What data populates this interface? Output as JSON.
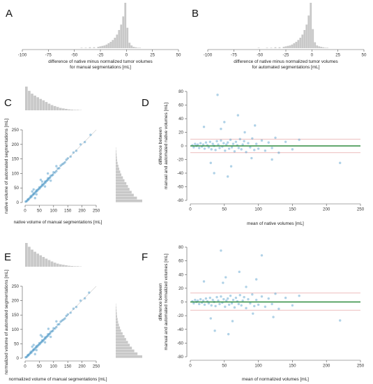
{
  "colors": {
    "hist_bar": "#c8c8c8",
    "points": "#3a8fc4",
    "bias_line": "#2e8b3e",
    "loa_line": "#e6a9a9",
    "identity": "#d5d5d5"
  },
  "panels": {
    "A": {
      "letter": "A",
      "xlabel_line1": "difference of native minus normalized tumor volumes",
      "xlabel_line2": "for manual segmentations [mL]"
    },
    "B": {
      "letter": "B",
      "xlabel_line1": "difference of native minus normalized tumor volumes",
      "xlabel_line2": "for automated segmentations [mL]"
    },
    "C": {
      "letter": "C",
      "xlabel": "native volume of manual segmentations [mL]",
      "ylabel": "native volume of automated segmentations [mL]"
    },
    "D": {
      "letter": "D",
      "xlabel": "mean of native volumes [mL]",
      "ylabel_line1": "difference between",
      "ylabel_line2": "manual and automated native volumes [mL]"
    },
    "E": {
      "letter": "E",
      "xlabel": "normalized volume of manual segmentations [mL]",
      "ylabel": "normalized volume of automated segmentations [mL]"
    },
    "F": {
      "letter": "F",
      "xlabel": "mean of normalized volumes [mL]",
      "ylabel_line1": "difference between",
      "ylabel_line2": "manual and automated normalized volumes [mL]"
    }
  },
  "chart_data": [
    {
      "panel": "A",
      "type": "bar",
      "subtype": "histogram",
      "xlim": [
        -100,
        50
      ],
      "xticks": [
        "-100",
        "-75",
        "-50",
        "-25",
        "0",
        "25",
        "50"
      ],
      "bin_width": 2,
      "bin_centers": [
        -43,
        -39,
        -35,
        -31,
        -27,
        -25,
        -23,
        -21,
        -19,
        -17,
        -15,
        -13,
        -11,
        -9,
        -7,
        -5,
        -3,
        -1,
        1,
        3,
        5,
        7,
        9,
        11,
        13
      ],
      "counts": [
        0.01,
        0.01,
        0.02,
        0.02,
        0.03,
        0.04,
        0.05,
        0.06,
        0.08,
        0.11,
        0.14,
        0.18,
        0.23,
        0.3,
        0.4,
        0.52,
        0.7,
        1.0,
        0.45,
        0.12,
        0.06,
        0.03,
        0.02,
        0.01,
        0.01
      ]
    },
    {
      "panel": "B",
      "type": "bar",
      "subtype": "histogram",
      "xlim": [
        -100,
        50
      ],
      "xticks": [
        "-100",
        "-75",
        "-50",
        "-25",
        "0",
        "25",
        "50"
      ],
      "bin_width": 2,
      "bin_centers": [
        -51,
        -43,
        -39,
        -35,
        -31,
        -27,
        -25,
        -23,
        -21,
        -19,
        -17,
        -15,
        -13,
        -11,
        -9,
        -7,
        -5,
        -3,
        -1,
        1,
        3,
        5,
        7,
        9,
        11,
        13,
        15
      ],
      "counts": [
        0.01,
        0.01,
        0.01,
        0.02,
        0.02,
        0.03,
        0.04,
        0.05,
        0.06,
        0.08,
        0.11,
        0.14,
        0.18,
        0.23,
        0.3,
        0.4,
        0.52,
        0.72,
        1.0,
        0.42,
        0.13,
        0.06,
        0.04,
        0.03,
        0.02,
        0.01,
        0.01
      ]
    },
    {
      "panel": "C",
      "type": "scatter",
      "xlim": [
        0,
        250
      ],
      "ylim": [
        0,
        250
      ],
      "xticks": [
        "0",
        "50",
        "100",
        "150",
        "200",
        "250"
      ],
      "yticks": [
        "0",
        "50",
        "100",
        "150",
        "200",
        "250"
      ],
      "identity_line": true,
      "points": [
        [
          2,
          3
        ],
        [
          5,
          4
        ],
        [
          8,
          7
        ],
        [
          10,
          11
        ],
        [
          12,
          10
        ],
        [
          15,
          14
        ],
        [
          18,
          17
        ],
        [
          20,
          22
        ],
        [
          22,
          19
        ],
        [
          25,
          24
        ],
        [
          28,
          27
        ],
        [
          30,
          31
        ],
        [
          32,
          29
        ],
        [
          35,
          34
        ],
        [
          38,
          37
        ],
        [
          40,
          42
        ],
        [
          42,
          39
        ],
        [
          45,
          44
        ],
        [
          48,
          46
        ],
        [
          50,
          52
        ],
        [
          52,
          49
        ],
        [
          55,
          54
        ],
        [
          58,
          56
        ],
        [
          60,
          62
        ],
        [
          62,
          59
        ],
        [
          65,
          63
        ],
        [
          68,
          66
        ],
        [
          70,
          72
        ],
        [
          72,
          69
        ],
        [
          75,
          74
        ],
        [
          78,
          76
        ],
        [
          80,
          83
        ],
        [
          82,
          79
        ],
        [
          85,
          84
        ],
        [
          88,
          86
        ],
        [
          90,
          92
        ],
        [
          95,
          93
        ],
        [
          98,
          96
        ],
        [
          100,
          104
        ],
        [
          105,
          103
        ],
        [
          110,
          108
        ],
        [
          115,
          117
        ],
        [
          120,
          118
        ],
        [
          125,
          127
        ],
        [
          130,
          131
        ],
        [
          135,
          134
        ],
        [
          140,
          138
        ],
        [
          145,
          147
        ],
        [
          150,
          152
        ],
        [
          160,
          158
        ],
        [
          170,
          172
        ],
        [
          180,
          178
        ],
        [
          195,
          200
        ],
        [
          210,
          208
        ],
        [
          230,
          233
        ],
        [
          40,
          28
        ],
        [
          60,
          72
        ],
        [
          30,
          45
        ],
        [
          70,
          55
        ],
        [
          25,
          38
        ],
        [
          90,
          75
        ],
        [
          110,
          125
        ],
        [
          55,
          78
        ],
        [
          35,
          15
        ],
        [
          80,
          100
        ]
      ],
      "top_marginal": {
        "bin_width": 10,
        "counts": [
          1.0,
          0.82,
          0.7,
          0.62,
          0.55,
          0.48,
          0.42,
          0.35,
          0.28,
          0.22,
          0.18,
          0.14,
          0.1,
          0.08,
          0.06,
          0.04,
          0.03,
          0.02,
          0.02,
          0.01
        ]
      },
      "right_marginal": {
        "bin_width": 10,
        "counts": [
          1.0,
          0.8,
          0.68,
          0.6,
          0.52,
          0.46,
          0.4,
          0.33,
          0.27,
          0.21,
          0.17,
          0.13,
          0.1,
          0.07,
          0.05,
          0.04,
          0.03,
          0.02,
          0.01
        ]
      }
    },
    {
      "panel": "D",
      "type": "scatter",
      "subtype": "bland-altman",
      "xlim": [
        0,
        250
      ],
      "ylim": [
        -80,
        80
      ],
      "xticks": [
        "0",
        "50",
        "100",
        "150",
        "200",
        "250"
      ],
      "yticks": [
        "-80",
        "-60",
        "-40",
        "-20",
        "0",
        "20",
        "40",
        "60",
        "80"
      ],
      "bias": 0,
      "loa": [
        -10,
        10
      ],
      "points": [
        [
          3,
          1
        ],
        [
          5,
          -2
        ],
        [
          7,
          3
        ],
        [
          9,
          0
        ],
        [
          11,
          2
        ],
        [
          13,
          -3
        ],
        [
          15,
          4
        ],
        [
          17,
          -1
        ],
        [
          19,
          2
        ],
        [
          21,
          -4
        ],
        [
          23,
          5
        ],
        [
          25,
          1
        ],
        [
          27,
          -2
        ],
        [
          29,
          6
        ],
        [
          31,
          -5
        ],
        [
          33,
          3
        ],
        [
          35,
          0
        ],
        [
          37,
          -6
        ],
        [
          39,
          7
        ],
        [
          41,
          2
        ],
        [
          43,
          -3
        ],
        [
          45,
          8
        ],
        [
          47,
          -1
        ],
        [
          49,
          4
        ],
        [
          51,
          -7
        ],
        [
          53,
          2
        ],
        [
          55,
          5
        ],
        [
          57,
          -4
        ],
        [
          59,
          9
        ],
        [
          61,
          -2
        ],
        [
          63,
          3
        ],
        [
          65,
          -8
        ],
        [
          67,
          6
        ],
        [
          69,
          1
        ],
        [
          71,
          -3
        ],
        [
          73,
          10
        ],
        [
          75,
          -5
        ],
        [
          77,
          2
        ],
        [
          79,
          7
        ],
        [
          82,
          -9
        ],
        [
          85,
          4
        ],
        [
          88,
          -2
        ],
        [
          91,
          11
        ],
        [
          94,
          -6
        ],
        [
          97,
          3
        ],
        [
          100,
          -4
        ],
        [
          105,
          8
        ],
        [
          110,
          -7
        ],
        [
          115,
          5
        ],
        [
          120,
          -3
        ],
        [
          125,
          12
        ],
        [
          130,
          -10
        ],
        [
          140,
          6
        ],
        [
          150,
          -5
        ],
        [
          160,
          9
        ],
        [
          40,
          75
        ],
        [
          45,
          25
        ],
        [
          50,
          35
        ],
        [
          30,
          -25
        ],
        [
          70,
          45
        ],
        [
          60,
          -30
        ],
        [
          80,
          20
        ],
        [
          35,
          -40
        ],
        [
          55,
          -45
        ],
        [
          95,
          30
        ],
        [
          120,
          -20
        ],
        [
          220,
          -25
        ],
        [
          20,
          28
        ],
        [
          90,
          -18
        ]
      ]
    },
    {
      "panel": "E",
      "type": "scatter",
      "xlim": [
        0,
        250
      ],
      "ylim": [
        0,
        250
      ],
      "xticks": [
        "0",
        "50",
        "100",
        "150",
        "200",
        "250"
      ],
      "yticks": [
        "0",
        "50",
        "100",
        "150",
        "200",
        "250"
      ],
      "identity_line": true,
      "points": [
        [
          2,
          3
        ],
        [
          5,
          4
        ],
        [
          8,
          7
        ],
        [
          10,
          11
        ],
        [
          12,
          10
        ],
        [
          15,
          14
        ],
        [
          18,
          17
        ],
        [
          20,
          22
        ],
        [
          22,
          19
        ],
        [
          25,
          24
        ],
        [
          28,
          27
        ],
        [
          30,
          31
        ],
        [
          32,
          29
        ],
        [
          35,
          34
        ],
        [
          38,
          37
        ],
        [
          40,
          42
        ],
        [
          42,
          39
        ],
        [
          45,
          44
        ],
        [
          48,
          46
        ],
        [
          50,
          52
        ],
        [
          52,
          49
        ],
        [
          55,
          54
        ],
        [
          58,
          56
        ],
        [
          60,
          62
        ],
        [
          62,
          59
        ],
        [
          65,
          63
        ],
        [
          68,
          66
        ],
        [
          70,
          72
        ],
        [
          72,
          69
        ],
        [
          75,
          74
        ],
        [
          78,
          76
        ],
        [
          80,
          83
        ],
        [
          82,
          79
        ],
        [
          85,
          84
        ],
        [
          88,
          86
        ],
        [
          90,
          92
        ],
        [
          95,
          93
        ],
        [
          98,
          96
        ],
        [
          100,
          104
        ],
        [
          105,
          103
        ],
        [
          110,
          108
        ],
        [
          115,
          117
        ],
        [
          120,
          118
        ],
        [
          125,
          127
        ],
        [
          130,
          131
        ],
        [
          135,
          134
        ],
        [
          140,
          138
        ],
        [
          145,
          147
        ],
        [
          150,
          152
        ],
        [
          160,
          158
        ],
        [
          170,
          172
        ],
        [
          180,
          178
        ],
        [
          195,
          200
        ],
        [
          210,
          208
        ],
        [
          225,
          228
        ],
        [
          40,
          28
        ],
        [
          60,
          75
        ],
        [
          30,
          46
        ],
        [
          70,
          55
        ],
        [
          25,
          40
        ],
        [
          90,
          74
        ],
        [
          110,
          128
        ],
        [
          55,
          80
        ],
        [
          35,
          14
        ],
        [
          82,
          102
        ]
      ],
      "top_marginal": {
        "bin_width": 10,
        "counts": [
          1.0,
          0.84,
          0.72,
          0.63,
          0.55,
          0.48,
          0.41,
          0.34,
          0.28,
          0.22,
          0.17,
          0.13,
          0.1,
          0.08,
          0.06,
          0.04,
          0.03,
          0.02,
          0.02,
          0.01
        ]
      },
      "right_marginal": {
        "bin_width": 10,
        "counts": [
          1.0,
          0.82,
          0.7,
          0.61,
          0.53,
          0.46,
          0.39,
          0.33,
          0.26,
          0.2,
          0.16,
          0.12,
          0.09,
          0.07,
          0.05,
          0.04,
          0.03,
          0.02,
          0.01
        ]
      }
    },
    {
      "panel": "F",
      "type": "scatter",
      "subtype": "bland-altman",
      "xlim": [
        0,
        250
      ],
      "ylim": [
        -80,
        80
      ],
      "xticks": [
        "0",
        "50",
        "100",
        "150",
        "200",
        "250"
      ],
      "yticks": [
        "-80",
        "-60",
        "-40",
        "-20",
        "0",
        "20",
        "40",
        "60",
        "80"
      ],
      "bias": 0,
      "loa": [
        -12,
        13
      ],
      "points": [
        [
          3,
          1
        ],
        [
          5,
          -2
        ],
        [
          7,
          3
        ],
        [
          9,
          0
        ],
        [
          11,
          2
        ],
        [
          13,
          -3
        ],
        [
          15,
          4
        ],
        [
          17,
          -1
        ],
        [
          19,
          2
        ],
        [
          21,
          -4
        ],
        [
          23,
          5
        ],
        [
          25,
          1
        ],
        [
          27,
          -2
        ],
        [
          29,
          6
        ],
        [
          31,
          -5
        ],
        [
          33,
          3
        ],
        [
          35,
          0
        ],
        [
          37,
          -6
        ],
        [
          39,
          7
        ],
        [
          41,
          2
        ],
        [
          43,
          -3
        ],
        [
          45,
          8
        ],
        [
          47,
          -1
        ],
        [
          49,
          4
        ],
        [
          51,
          -7
        ],
        [
          53,
          2
        ],
        [
          55,
          5
        ],
        [
          57,
          -4
        ],
        [
          59,
          9
        ],
        [
          61,
          -2
        ],
        [
          63,
          3
        ],
        [
          65,
          -8
        ],
        [
          67,
          6
        ],
        [
          69,
          1
        ],
        [
          71,
          -3
        ],
        [
          73,
          10
        ],
        [
          75,
          -5
        ],
        [
          77,
          2
        ],
        [
          79,
          7
        ],
        [
          82,
          -9
        ],
        [
          85,
          4
        ],
        [
          88,
          -2
        ],
        [
          91,
          11
        ],
        [
          94,
          -6
        ],
        [
          97,
          3
        ],
        [
          100,
          -4
        ],
        [
          105,
          8
        ],
        [
          110,
          -7
        ],
        [
          115,
          5
        ],
        [
          120,
          -3
        ],
        [
          125,
          12
        ],
        [
          130,
          -10
        ],
        [
          140,
          6
        ],
        [
          150,
          -5
        ],
        [
          160,
          9
        ],
        [
          45,
          75
        ],
        [
          48,
          28
        ],
        [
          52,
          36
        ],
        [
          30,
          -24
        ],
        [
          72,
          44
        ],
        [
          62,
          -28
        ],
        [
          82,
          22
        ],
        [
          36,
          -42
        ],
        [
          56,
          -47
        ],
        [
          97,
          33
        ],
        [
          122,
          -22
        ],
        [
          105,
          68
        ],
        [
          220,
          -27
        ],
        [
          20,
          30
        ],
        [
          92,
          -17
        ]
      ]
    }
  ]
}
